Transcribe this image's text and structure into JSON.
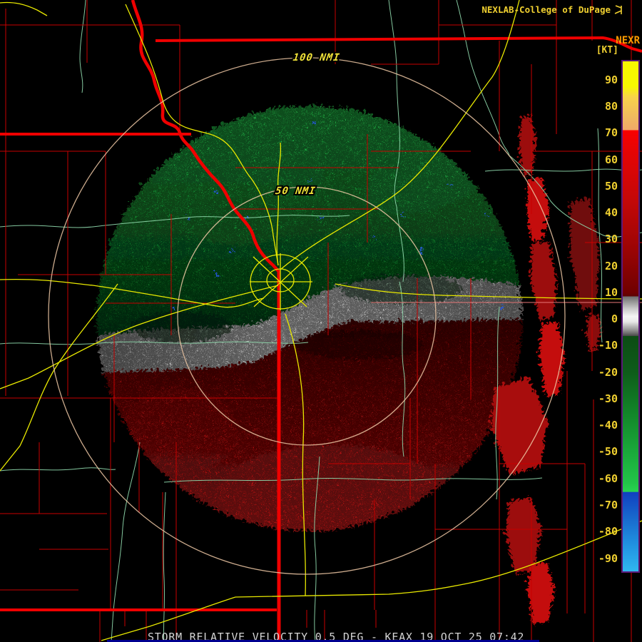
{
  "branding": {
    "title": "NEXLAB-College of DuPage",
    "product_code": "NEXR",
    "units_label": "[KT]"
  },
  "status_bar": {
    "text": "STORM RELATIVE VELOCITY 0.5 DEG - KEAX 19 OCT 25 07:42",
    "product": "STORM RELATIVE VELOCITY",
    "elevation": "0.5 DEG",
    "radar_site": "KEAX",
    "datetime": "19 OCT 25 07:42"
  },
  "range_rings": {
    "inner_label": "50 NMI",
    "outer_label": "100 NMI"
  },
  "colorbar": {
    "units": "KT",
    "value_max": 97.5,
    "value_min": -95.5,
    "ticks": [
      90,
      80,
      70,
      60,
      50,
      40,
      30,
      20,
      10,
      0,
      -10,
      -20,
      -30,
      -40,
      -50,
      -60,
      -70,
      -80,
      -90
    ],
    "stops": [
      {
        "v": 97.5,
        "c": "#f8f800"
      },
      {
        "v": 88,
        "c": "#f8f800"
      },
      {
        "v": 84,
        "c": "#f8d24a"
      },
      {
        "v": 76,
        "c": "#f0b860"
      },
      {
        "v": 71.5,
        "c": "#f0a868"
      },
      {
        "v": 71.4,
        "c": "#f80000"
      },
      {
        "v": 65,
        "c": "#e80404"
      },
      {
        "v": 45,
        "c": "#c40808"
      },
      {
        "v": 25,
        "c": "#980404"
      },
      {
        "v": 10,
        "c": "#700000"
      },
      {
        "v": 8.6,
        "c": "#5c0404"
      },
      {
        "v": 8.5,
        "c": "#6e6e6e"
      },
      {
        "v": 4,
        "c": "#c8c8c8"
      },
      {
        "v": 1,
        "c": "#f4f4f4"
      },
      {
        "v": -1,
        "c": "#e8e8e8"
      },
      {
        "v": -4.5,
        "c": "#8a8a8a"
      },
      {
        "v": -6.4,
        "c": "#4a4a4a"
      },
      {
        "v": -6.5,
        "c": "#0c4c14"
      },
      {
        "v": -20,
        "c": "#0e5c1a"
      },
      {
        "v": -35,
        "c": "#128428"
      },
      {
        "v": -50,
        "c": "#1aa83a"
      },
      {
        "v": -62,
        "c": "#22c448"
      },
      {
        "v": -65.4,
        "c": "#28d450"
      },
      {
        "v": -65.5,
        "c": "#1040c0"
      },
      {
        "v": -75,
        "c": "#1868cc"
      },
      {
        "v": -85,
        "c": "#2090e0"
      },
      {
        "v": -95.5,
        "c": "#30b8f0"
      }
    ]
  },
  "colors": {
    "background": "#000000",
    "county_line": "#c80000",
    "state_line": "#ef0000",
    "road": "#e8e800",
    "river": "#8fd9ad",
    "range_ring": "#eec8a4",
    "ring_label": "#f0e238",
    "title_text": "#f0d030",
    "product_text": "#ff9c00",
    "scale_text": "#f0d030",
    "status_text": "#d4d4d4",
    "status_underline": "#000090",
    "colorbar_border": "#5c1a7a",
    "inbound_bright": "#28c34e",
    "inbound_mid": "#14a038",
    "inbound_dark": "#07511a",
    "outbound_bright": "#e81a1a",
    "outbound_mid": "#9c0b0b",
    "outbound_dark": "#4d0505",
    "zero_band_bright": "#ededed",
    "zero_band_dim": "#9f9f9f",
    "blue_dot": "#2858e0"
  }
}
